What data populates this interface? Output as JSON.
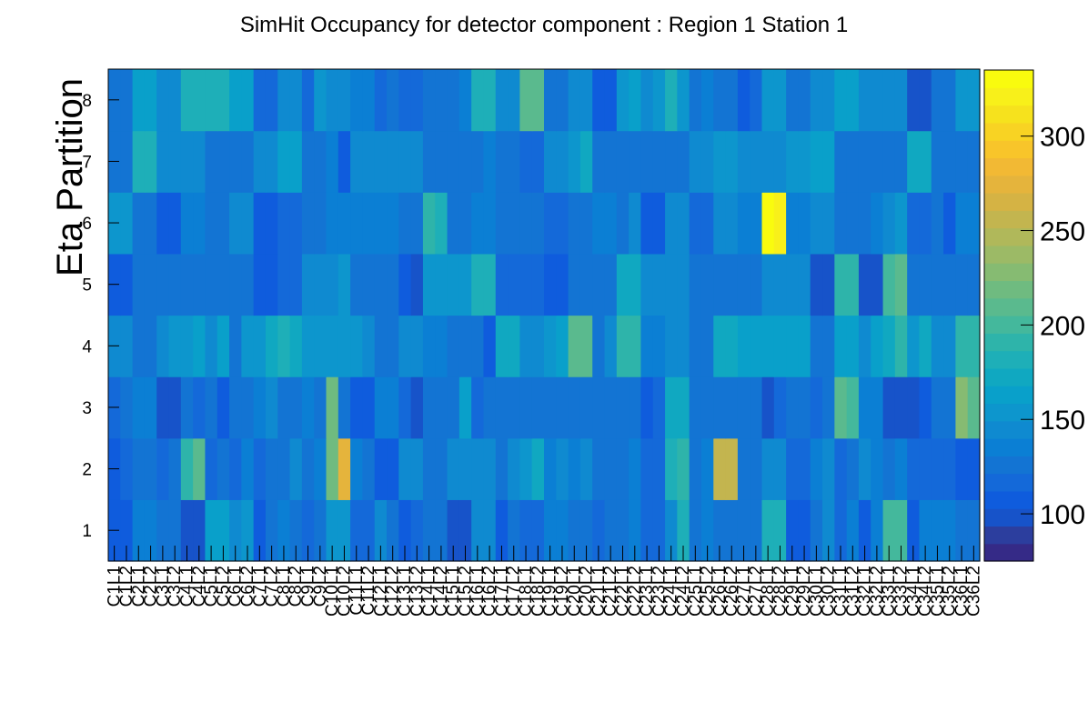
{
  "chart_data": {
    "type": "heatmap",
    "title": "SimHit Occupancy for detector component : Region 1 Station 1",
    "ylabel": "Eta Partition",
    "xlabel": "",
    "x_categories": [
      "C1L1",
      "C1L2",
      "C2L1",
      "C2L2",
      "C3L1",
      "C3L2",
      "C4L1",
      "C4L2",
      "C5L1",
      "C5L2",
      "C6L1",
      "C6L2",
      "C7L1",
      "C7L2",
      "C8L1",
      "C8L2",
      "C9L1",
      "C9L2",
      "C10L1",
      "C10L2",
      "C11L1",
      "C11L2",
      "C12L1",
      "C12L2",
      "C13L1",
      "C13L2",
      "C14L1",
      "C14L2",
      "C15L1",
      "C15L2",
      "C16L1",
      "C16L2",
      "C17L1",
      "C17L2",
      "C18L1",
      "C18L2",
      "C19L1",
      "C19L2",
      "C20L1",
      "C20L2",
      "C21L1",
      "C21L2",
      "C22L1",
      "C22L2",
      "C23L1",
      "C23L2",
      "C24L1",
      "C24L2",
      "C25L1",
      "C25L2",
      "C26L1",
      "C26L2",
      "C27L1",
      "C27L2",
      "C28L1",
      "C28L2",
      "C29L1",
      "C29L2",
      "C30L1",
      "C30L2",
      "C31L1",
      "C31L2",
      "C32L1",
      "C32L2",
      "C33L1",
      "C33L2",
      "C34L1",
      "C34L2",
      "C35L1",
      "C35L2",
      "C36L1",
      "C36L2"
    ],
    "y_categories": [
      "1",
      "2",
      "3",
      "4",
      "5",
      "6",
      "7",
      "8"
    ],
    "z_range": [
      75,
      335
    ],
    "colorbar_ticks": [
      "100",
      "150",
      "200",
      "250",
      "300"
    ],
    "colorbar_tick_values": [
      100,
      150,
      200,
      250,
      300
    ],
    "colorscale": [
      "#352a87",
      "#2c3e9e",
      "#1753c9",
      "#0f5cdd",
      "#1469d9",
      "#1374d3",
      "#0b7fd4",
      "#0f8ad0",
      "#0d96cd",
      "#09a0ca",
      "#10a8c1",
      "#1eafb8",
      "#2eb4aa",
      "#44b89c",
      "#5aba8e",
      "#6fbb80",
      "#86bb72",
      "#9cba66",
      "#b0b85a",
      "#c3b54f",
      "#d5b344",
      "#e5b43c",
      "#f2b934",
      "#f8c52a",
      "#f8d323",
      "#f6e21d",
      "#f8f01a",
      "#f9fb0e"
    ],
    "z_rows": [
      [
        105,
        105,
        135,
        135,
        125,
        125,
        95,
        95,
        160,
        160,
        140,
        155,
        110,
        125,
        135,
        125,
        115,
        125,
        150,
        150,
        115,
        120,
        145,
        130,
        110,
        115,
        130,
        125,
        100,
        100,
        145,
        140,
        110,
        125,
        120,
        120,
        135,
        135,
        130,
        130,
        120,
        125,
        130,
        135,
        120,
        115,
        140,
        180,
        130,
        135,
        130,
        130,
        125,
        130,
        180,
        180,
        105,
        105,
        125,
        145,
        115,
        135,
        110,
        135,
        200,
        200,
        110,
        135,
        135,
        135,
        130,
        130
      ],
      [
        110,
        120,
        125,
        130,
        120,
        130,
        195,
        210,
        120,
        130,
        115,
        135,
        120,
        130,
        130,
        140,
        125,
        135,
        220,
        270,
        135,
        125,
        105,
        105,
        145,
        145,
        130,
        130,
        140,
        140,
        140,
        140,
        125,
        145,
        155,
        175,
        135,
        140,
        135,
        140,
        130,
        125,
        130,
        135,
        120,
        115,
        180,
        190,
        130,
        135,
        260,
        260,
        125,
        130,
        140,
        140,
        120,
        120,
        135,
        140,
        120,
        125,
        140,
        135,
        130,
        135,
        115,
        115,
        120,
        120,
        105,
        105
      ],
      [
        115,
        125,
        135,
        135,
        95,
        95,
        125,
        115,
        130,
        105,
        125,
        125,
        135,
        145,
        130,
        130,
        135,
        125,
        215,
        130,
        110,
        110,
        135,
        135,
        115,
        95,
        125,
        130,
        130,
        160,
        120,
        130,
        130,
        130,
        130,
        130,
        130,
        130,
        130,
        130,
        130,
        125,
        130,
        130,
        110,
        120,
        170,
        170,
        130,
        125,
        125,
        125,
        125,
        125,
        100,
        120,
        130,
        125,
        115,
        130,
        210,
        200,
        135,
        135,
        100,
        100,
        95,
        110,
        130,
        130,
        225,
        210
      ],
      [
        145,
        145,
        130,
        130,
        140,
        150,
        155,
        160,
        145,
        160,
        125,
        150,
        155,
        175,
        185,
        170,
        155,
        150,
        150,
        150,
        150,
        140,
        125,
        125,
        140,
        140,
        135,
        135,
        125,
        125,
        130,
        110,
        175,
        175,
        140,
        140,
        150,
        160,
        205,
        205,
        130,
        145,
        190,
        190,
        135,
        135,
        140,
        140,
        130,
        130,
        175,
        175,
        160,
        160,
        160,
        160,
        165,
        165,
        125,
        125,
        160,
        160,
        145,
        165,
        170,
        190,
        155,
        170,
        140,
        140,
        190,
        190
      ],
      [
        110,
        110,
        125,
        125,
        130,
        130,
        130,
        130,
        125,
        125,
        125,
        125,
        110,
        110,
        115,
        115,
        145,
        145,
        140,
        150,
        125,
        125,
        125,
        125,
        105,
        95,
        155,
        155,
        155,
        155,
        180,
        180,
        120,
        120,
        120,
        120,
        110,
        110,
        130,
        130,
        130,
        130,
        170,
        170,
        145,
        145,
        145,
        145,
        125,
        125,
        125,
        125,
        125,
        130,
        145,
        145,
        140,
        140,
        95,
        95,
        190,
        190,
        95,
        95,
        200,
        210,
        125,
        125,
        125,
        125,
        125,
        125
      ],
      [
        150,
        150,
        130,
        130,
        110,
        110,
        135,
        135,
        130,
        130,
        145,
        145,
        110,
        110,
        120,
        120,
        130,
        130,
        135,
        135,
        135,
        135,
        135,
        135,
        130,
        130,
        195,
        185,
        125,
        125,
        135,
        135,
        130,
        130,
        125,
        125,
        120,
        120,
        125,
        125,
        135,
        135,
        130,
        145,
        110,
        110,
        140,
        140,
        115,
        115,
        140,
        140,
        135,
        135,
        330,
        325,
        135,
        135,
        140,
        140,
        130,
        130,
        125,
        135,
        140,
        150,
        115,
        115,
        125,
        105,
        135,
        135
      ],
      [
        130,
        130,
        180,
        180,
        140,
        140,
        145,
        145,
        125,
        125,
        125,
        125,
        145,
        145,
        165,
        165,
        130,
        130,
        135,
        105,
        140,
        140,
        140,
        140,
        140,
        140,
        125,
        125,
        130,
        130,
        125,
        135,
        125,
        125,
        120,
        120,
        140,
        140,
        150,
        170,
        125,
        125,
        130,
        130,
        130,
        130,
        125,
        125,
        140,
        140,
        150,
        150,
        145,
        145,
        140,
        140,
        150,
        150,
        160,
        160,
        125,
        125,
        125,
        125,
        125,
        125,
        170,
        170,
        130,
        130,
        130,
        130
      ],
      [
        125,
        125,
        160,
        160,
        145,
        145,
        185,
        185,
        185,
        185,
        165,
        165,
        120,
        120,
        145,
        145,
        120,
        155,
        145,
        145,
        135,
        135,
        120,
        125,
        120,
        120,
        130,
        130,
        130,
        135,
        185,
        185,
        145,
        145,
        205,
        205,
        125,
        125,
        145,
        145,
        110,
        110,
        150,
        160,
        140,
        150,
        180,
        150,
        130,
        135,
        125,
        125,
        110,
        115,
        150,
        150,
        130,
        130,
        145,
        145,
        160,
        160,
        140,
        145,
        140,
        140,
        100,
        100,
        130,
        130,
        155,
        155
      ]
    ]
  }
}
